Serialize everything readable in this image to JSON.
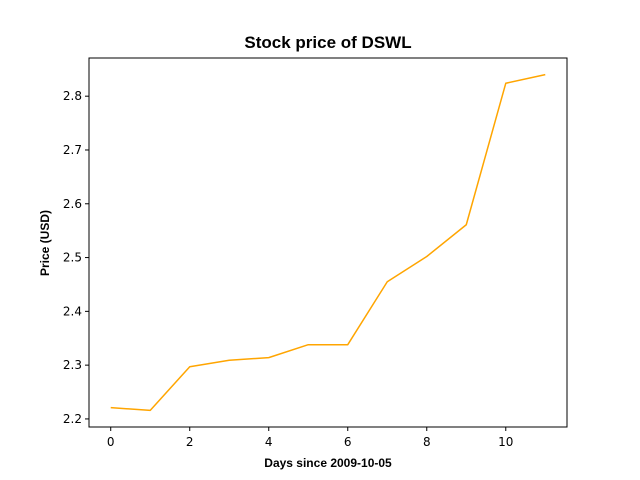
{
  "chart_data": {
    "type": "line",
    "title": "Stock price of DSWL",
    "xlabel": "Days since 2009-10-05",
    "ylabel": "Price (USD)",
    "x": [
      0,
      1,
      2,
      3,
      4,
      5,
      6,
      7,
      8,
      9,
      10,
      11
    ],
    "series": [
      {
        "values": [
          2.221,
          2.216,
          2.297,
          2.309,
          2.314,
          2.338,
          2.338,
          2.455,
          2.502,
          2.561,
          2.824,
          2.84
        ],
        "color": "#ffa500"
      }
    ],
    "xlim": [
      -0.55,
      11.55
    ],
    "ylim": [
      2.185,
      2.871
    ],
    "xticks": [
      0,
      2,
      4,
      6,
      8,
      10
    ],
    "yticks": [
      2.2,
      2.3,
      2.4,
      2.5,
      2.6,
      2.7,
      2.8
    ],
    "xtick_labels": [
      "0",
      "2",
      "4",
      "6",
      "8",
      "10"
    ],
    "ytick_labels": [
      "2.2",
      "2.3",
      "2.4",
      "2.5",
      "2.6",
      "2.7",
      "2.8"
    ],
    "grid": false,
    "legend": "none"
  }
}
